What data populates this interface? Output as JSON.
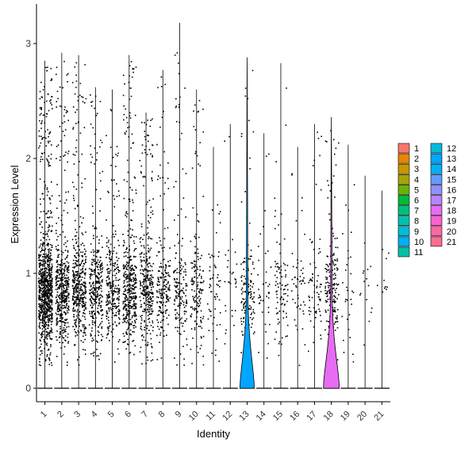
{
  "chart_data": {
    "type": "violin",
    "title": "",
    "xlabel": "Identity",
    "ylabel": "Expression Level",
    "ylim": [
      -0.15,
      3.3
    ],
    "yticks": [
      0,
      1,
      2,
      3
    ],
    "categories": [
      "1",
      "2",
      "3",
      "4",
      "5",
      "6",
      "7",
      "8",
      "9",
      "10",
      "11",
      "12",
      "13",
      "14",
      "15",
      "16",
      "17",
      "18",
      "19",
      "20",
      "21"
    ],
    "colors": [
      "#F8766D",
      "#E58700",
      "#C99800",
      "#A3A500",
      "#6BB100",
      "#00BA38",
      "#00BF7D",
      "#00C0AF",
      "#00BCD8",
      "#00B0F6",
      "#619CFF",
      "#B983FF",
      "#E76BF3",
      "#FD61D1",
      "#FF67A4",
      "#EE8244",
      "#D49200",
      "#AEA200",
      "#7CAE00",
      "#2CB44A",
      "#00BE9A"
    ],
    "legend_colors": [
      "#F8766D",
      "#E58700",
      "#C99800",
      "#A3A500",
      "#6BB100",
      "#00BA38",
      "#00BF7D",
      "#00C0AF",
      "#00BCD8",
      "#00B0F6",
      "#00C1A7",
      "#00BADE",
      "#00A6FF",
      "#00B1F5",
      "#619CFF",
      "#8F91FF",
      "#B983FF",
      "#E76BF3",
      "#FD61D1",
      "#FF67A4",
      "#FF6C90"
    ],
    "violin_fill": {
      "13": "#00A6FF",
      "18": "#E76BF3"
    },
    "violins": [
      {
        "category": "1",
        "max": 2.85,
        "points": 900
      },
      {
        "category": "2",
        "max": 2.92,
        "points": 450
      },
      {
        "category": "3",
        "max": 2.9,
        "points": 420
      },
      {
        "category": "4",
        "max": 2.62,
        "points": 320
      },
      {
        "category": "5",
        "max": 2.6,
        "points": 260
      },
      {
        "category": "6",
        "max": 2.9,
        "points": 420
      },
      {
        "category": "7",
        "max": 2.4,
        "points": 330
      },
      {
        "category": "8",
        "max": 2.77,
        "points": 190
      },
      {
        "category": "9",
        "max": 3.18,
        "points": 170
      },
      {
        "category": "10",
        "max": 2.6,
        "points": 160
      },
      {
        "category": "11",
        "max": 2.1,
        "points": 60
      },
      {
        "category": "12",
        "max": 2.3,
        "points": 30
      },
      {
        "category": "13",
        "max": 2.88,
        "points": 140
      },
      {
        "category": "14",
        "max": 2.22,
        "points": 40
      },
      {
        "category": "15",
        "max": 2.83,
        "points": 90
      },
      {
        "category": "16",
        "max": 2.1,
        "points": 50
      },
      {
        "category": "17",
        "max": 2.3,
        "points": 70
      },
      {
        "category": "18",
        "max": 2.36,
        "points": 200
      },
      {
        "category": "19",
        "max": 2.12,
        "points": 30
      },
      {
        "category": "20",
        "max": 1.85,
        "points": 15
      },
      {
        "category": "21",
        "max": 1.72,
        "points": 10
      }
    ],
    "grid": false,
    "legend_position": "right"
  }
}
